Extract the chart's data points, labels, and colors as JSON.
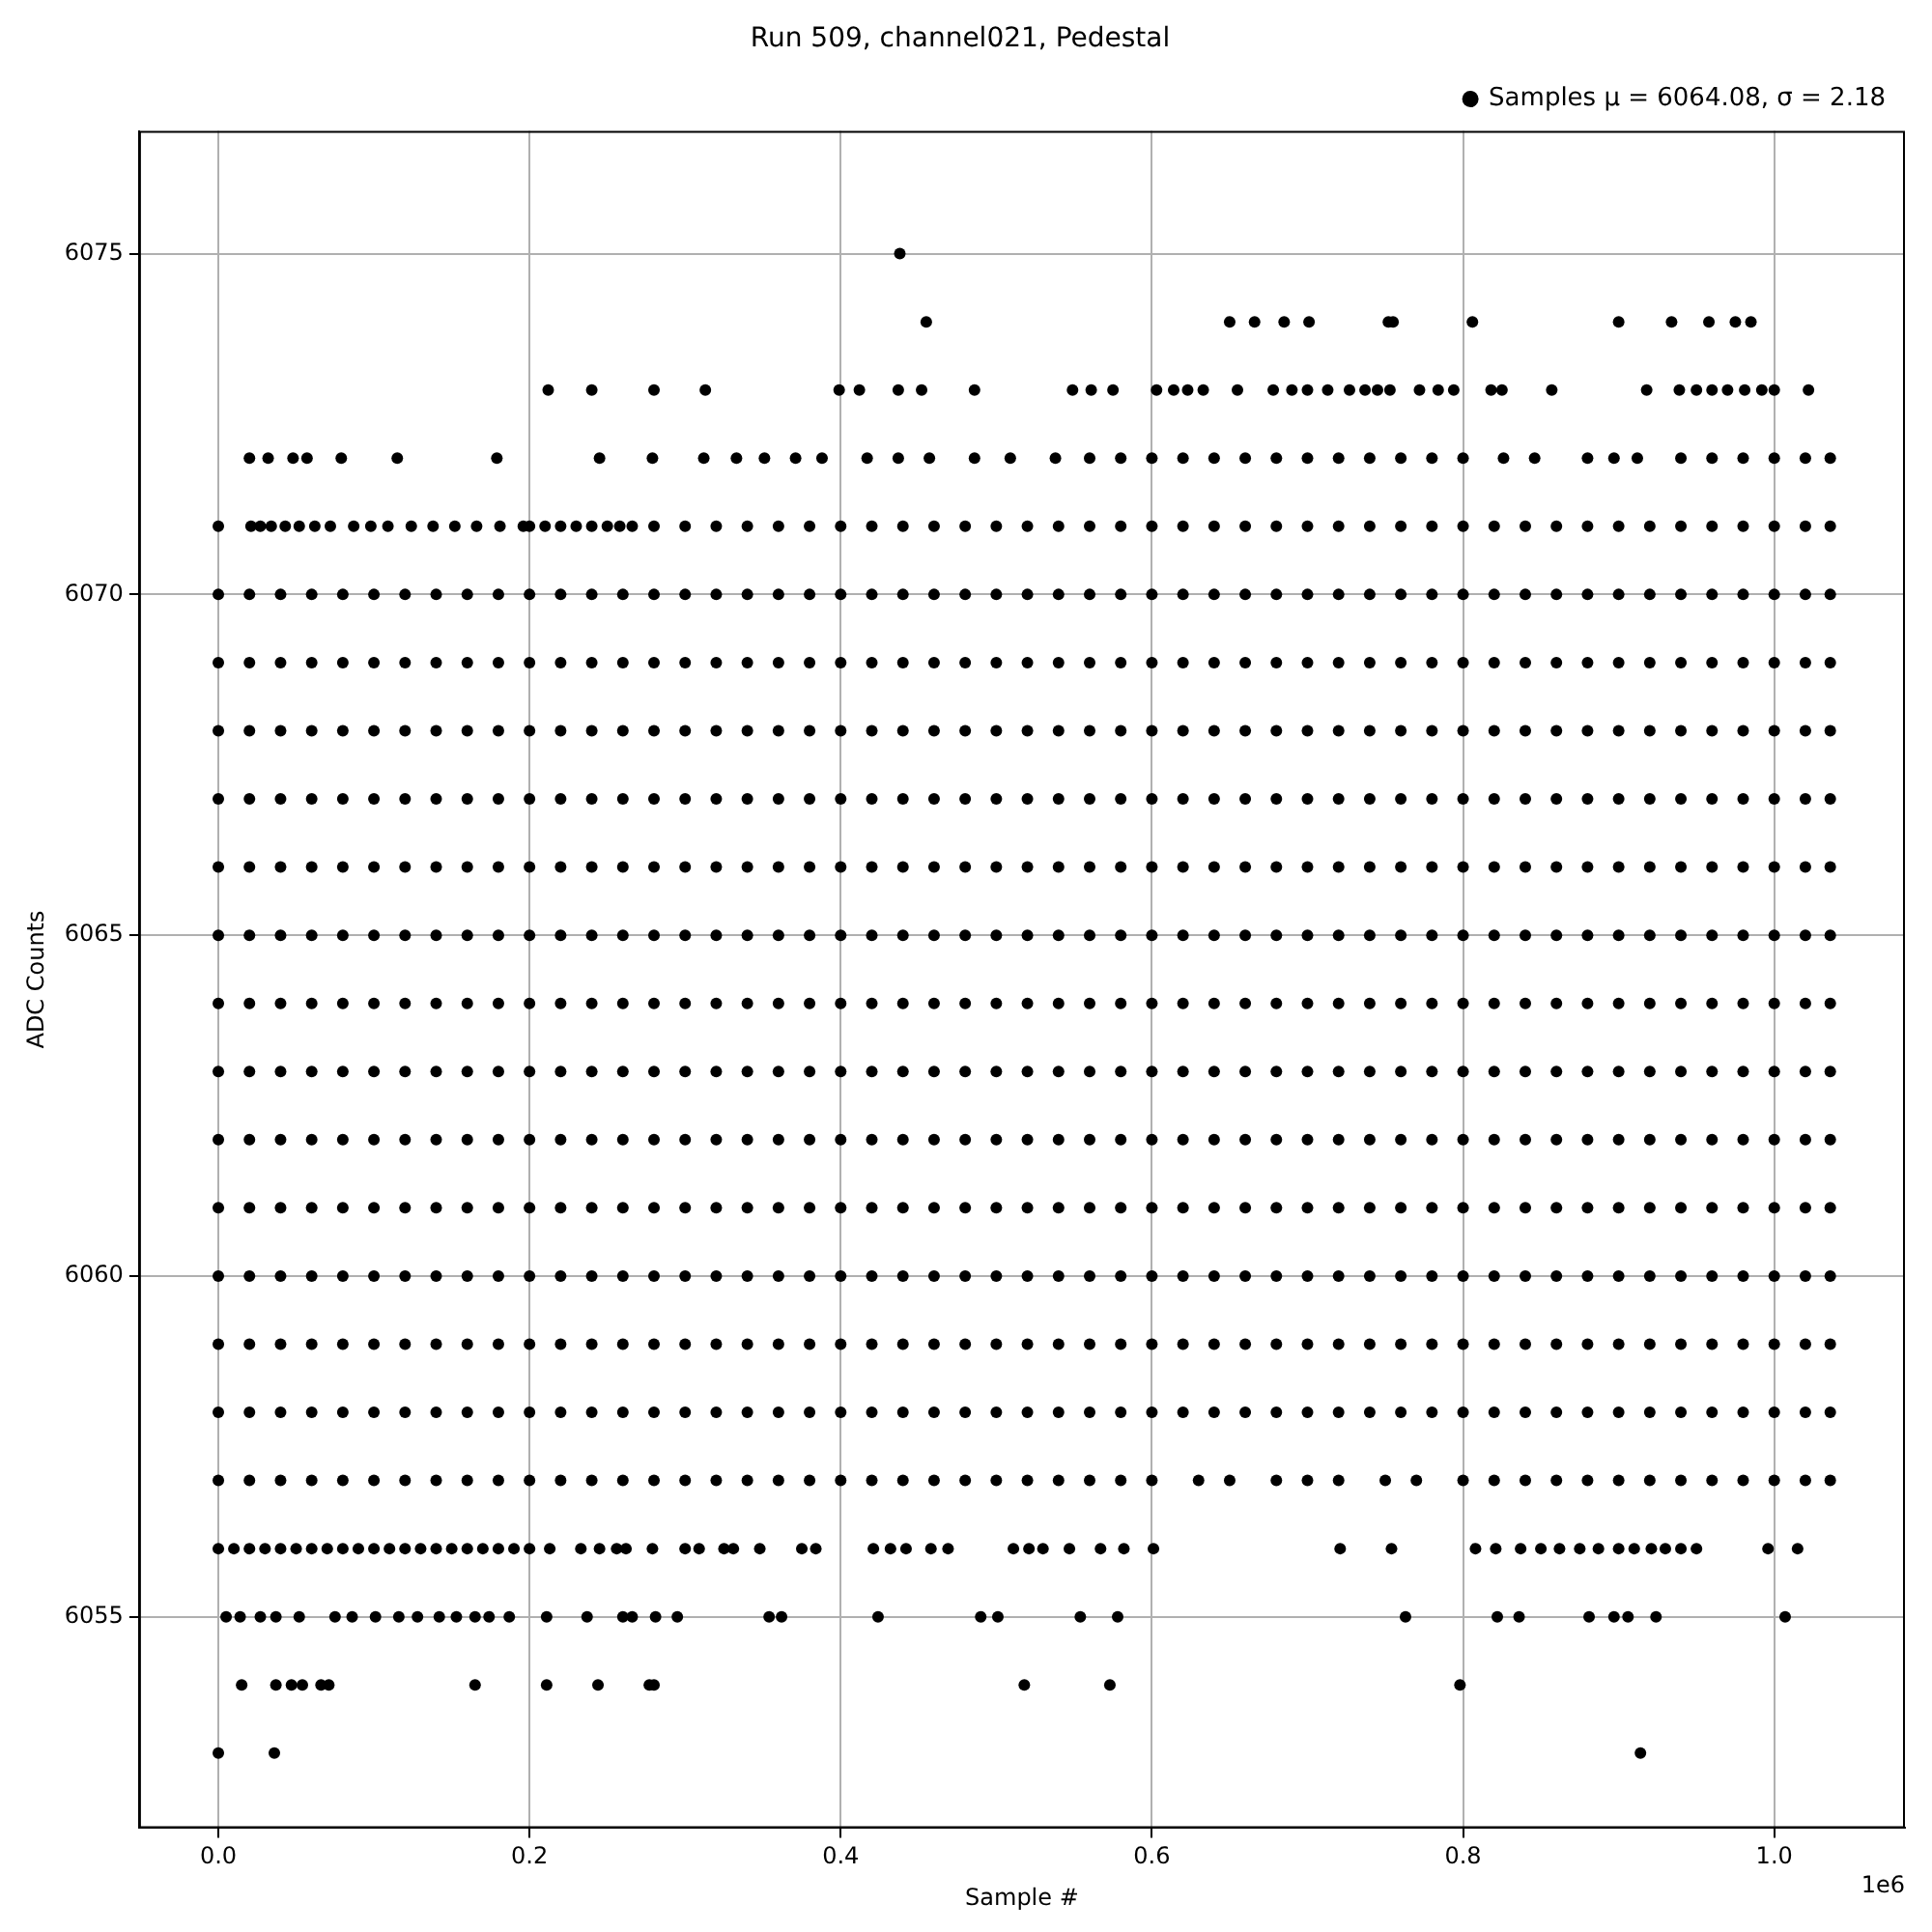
{
  "chart_data": {
    "type": "scatter",
    "title": "Run 509, channel021, Pedestal",
    "xlabel": "Sample #",
    "ylabel": "ADC Counts",
    "annotations": [
      "1e6"
    ],
    "xlim": [
      -0.051,
      1.084
    ],
    "ylim": [
      6051.9,
      6076.8
    ],
    "xticks": [
      {
        "value": 0,
        "label": "0.0"
      },
      0.2,
      0.4,
      0.6,
      0.8,
      {
        "value": 1,
        "label": "1.0"
      }
    ],
    "yticks": [
      6055,
      6060,
      6065,
      6070,
      6075
    ],
    "grid": true,
    "legend": "top right",
    "marker": "circle",
    "x": [
      0,
      0.02,
      0.04,
      0.06,
      0.08,
      0.1,
      0.12,
      0.14,
      0.16,
      0.18,
      0.2,
      0.22,
      0.24,
      0.26,
      0.28,
      0.3,
      0.32,
      0.34,
      0.36,
      0.38,
      0.4,
      0.42,
      0.44,
      0.46,
      0.48,
      0.5,
      0.52,
      0.54,
      0.56,
      0.58,
      0.6,
      0.62,
      0.64,
      0.66,
      0.68,
      0.7,
      0.72,
      0.74,
      0.76,
      0.78,
      0.8,
      0.82,
      0.84,
      0.86,
      0.88,
      0.9,
      0.92,
      0.94,
      0.96,
      0.98,
      1,
      1.02,
      1.036
    ],
    "series": [
      {
        "name": "Samples\nμ = 6064.08, σ = 2.18",
        "color": "#000000",
        "values": [
          6069,
          6069,
          6069,
          6069,
          6069,
          6069,
          6069,
          6069,
          6069,
          6069,
          6069,
          6069,
          6069,
          6069,
          6069,
          6069,
          6069,
          6069,
          6069,
          6069,
          6069,
          6069,
          6069,
          6069,
          6069,
          6069,
          6069,
          6069,
          6069,
          6069,
          6069,
          6069,
          6069,
          6069,
          6069,
          6069,
          6069,
          6069,
          6069,
          6069,
          6069,
          6069,
          6069,
          6069,
          6069,
          6069,
          6069,
          6069,
          6069,
          6069,
          6069,
          6069,
          6069
        ]
      },
      {
        "color": "#000000",
        "values": [
          6068,
          6068,
          6068,
          6068,
          6068,
          6068,
          6068,
          6068,
          6068,
          6068,
          6068,
          6068,
          6068,
          6068,
          6068,
          6068,
          6068,
          6068,
          6068,
          6068,
          6068,
          6068,
          6068,
          6068,
          6068,
          6068,
          6068,
          6068,
          6068,
          6068,
          6068,
          6068,
          6068,
          6068,
          6068,
          6068,
          6068,
          6068,
          6068,
          6068,
          6068,
          6068,
          6068,
          6068,
          6068,
          6068,
          6068,
          6068,
          6068,
          6068,
          6068,
          6068,
          6068
        ]
      },
      {
        "color": "#000000",
        "values": [
          6067,
          6067,
          6067,
          6067,
          6067,
          6067,
          6067,
          6067,
          6067,
          6067,
          6067,
          6067,
          6067,
          6067,
          6067,
          6067,
          6067,
          6067,
          6067,
          6067,
          6067,
          6067,
          6067,
          6067,
          6067,
          6067,
          6067,
          6067,
          6067,
          6067,
          6067,
          6067,
          6067,
          6067,
          6067,
          6067,
          6067,
          6067,
          6067,
          6067,
          6067,
          6067,
          6067,
          6067,
          6067,
          6067,
          6067,
          6067,
          6067,
          6067,
          6067,
          6067,
          6067
        ]
      },
      {
        "color": "#000000",
        "values": [
          6066,
          6066,
          6066,
          6066,
          6066,
          6066,
          6066,
          6066,
          6066,
          6066,
          6066,
          6066,
          6066,
          6066,
          6066,
          6066,
          6066,
          6066,
          6066,
          6066,
          6066,
          6066,
          6066,
          6066,
          6066,
          6066,
          6066,
          6066,
          6066,
          6066,
          6066,
          6066,
          6066,
          6066,
          6066,
          6066,
          6066,
          6066,
          6066,
          6066,
          6066,
          6066,
          6066,
          6066,
          6066,
          6066,
          6066,
          6066,
          6066,
          6066,
          6066,
          6066,
          6066
        ]
      },
      {
        "color": "#000000",
        "values": [
          6065,
          6065,
          6065,
          6065,
          6065,
          6065,
          6065,
          6065,
          6065,
          6065,
          6065,
          6065,
          6065,
          6065,
          6065,
          6065,
          6065,
          6065,
          6065,
          6065,
          6065,
          6065,
          6065,
          6065,
          6065,
          6065,
          6065,
          6065,
          6065,
          6065,
          6065,
          6065,
          6065,
          6065,
          6065,
          6065,
          6065,
          6065,
          6065,
          6065,
          6065,
          6065,
          6065,
          6065,
          6065,
          6065,
          6065,
          6065,
          6065,
          6065,
          6065,
          6065,
          6065
        ]
      },
      {
        "color": "#000000",
        "values": [
          6064,
          6064,
          6064,
          6064,
          6064,
          6064,
          6064,
          6064,
          6064,
          6064,
          6064,
          6064,
          6064,
          6064,
          6064,
          6064,
          6064,
          6064,
          6064,
          6064,
          6064,
          6064,
          6064,
          6064,
          6064,
          6064,
          6064,
          6064,
          6064,
          6064,
          6064,
          6064,
          6064,
          6064,
          6064,
          6064,
          6064,
          6064,
          6064,
          6064,
          6064,
          6064,
          6064,
          6064,
          6064,
          6064,
          6064,
          6064,
          6064,
          6064,
          6064,
          6064,
          6064
        ]
      },
      {
        "color": "#000000",
        "values": [
          6063,
          6063,
          6063,
          6063,
          6063,
          6063,
          6063,
          6063,
          6063,
          6063,
          6063,
          6063,
          6063,
          6063,
          6063,
          6063,
          6063,
          6063,
          6063,
          6063,
          6063,
          6063,
          6063,
          6063,
          6063,
          6063,
          6063,
          6063,
          6063,
          6063,
          6063,
          6063,
          6063,
          6063,
          6063,
          6063,
          6063,
          6063,
          6063,
          6063,
          6063,
          6063,
          6063,
          6063,
          6063,
          6063,
          6063,
          6063,
          6063,
          6063,
          6063,
          6063,
          6063
        ]
      },
      {
        "color": "#000000",
        "values": [
          6062,
          6062,
          6062,
          6062,
          6062,
          6062,
          6062,
          6062,
          6062,
          6062,
          6062,
          6062,
          6062,
          6062,
          6062,
          6062,
          6062,
          6062,
          6062,
          6062,
          6062,
          6062,
          6062,
          6062,
          6062,
          6062,
          6062,
          6062,
          6062,
          6062,
          6062,
          6062,
          6062,
          6062,
          6062,
          6062,
          6062,
          6062,
          6062,
          6062,
          6062,
          6062,
          6062,
          6062,
          6062,
          6062,
          6062,
          6062,
          6062,
          6062,
          6062,
          6062,
          6062
        ]
      },
      {
        "color": "#000000",
        "values": [
          6061,
          6061,
          6061,
          6061,
          6061,
          6061,
          6061,
          6061,
          6061,
          6061,
          6061,
          6061,
          6061,
          6061,
          6061,
          6061,
          6061,
          6061,
          6061,
          6061,
          6061,
          6061,
          6061,
          6061,
          6061,
          6061,
          6061,
          6061,
          6061,
          6061,
          6061,
          6061,
          6061,
          6061,
          6061,
          6061,
          6061,
          6061,
          6061,
          6061,
          6061,
          6061,
          6061,
          6061,
          6061,
          6061,
          6061,
          6061,
          6061,
          6061,
          6061,
          6061,
          6061
        ]
      },
      {
        "color": "#000000",
        "values": [
          6060,
          6060,
          6060,
          6060,
          6060,
          6060,
          6060,
          6060,
          6060,
          6060,
          6060,
          6060,
          6060,
          6060,
          6060,
          6060,
          6060,
          6060,
          6060,
          6060,
          6060,
          6060,
          6060,
          6060,
          6060,
          6060,
          6060,
          6060,
          6060,
          6060,
          6060,
          6060,
          6060,
          6060,
          6060,
          6060,
          6060,
          6060,
          6060,
          6060,
          6060,
          6060,
          6060,
          6060,
          6060,
          6060,
          6060,
          6060,
          6060,
          6060,
          6060,
          6060,
          6060
        ]
      },
      {
        "color": "#000000",
        "values": [
          6059,
          6059,
          6059,
          6059,
          6059,
          6059,
          6059,
          6059,
          6059,
          6059,
          6059,
          6059,
          6059,
          6059,
          6059,
          6059,
          6059,
          6059,
          6059,
          6059,
          6059,
          6059,
          6059,
          6059,
          6059,
          6059,
          6059,
          6059,
          6059,
          6059,
          6059,
          6059,
          6059,
          6059,
          6059,
          6059,
          6059,
          6059,
          6059,
          6059,
          6059,
          6059,
          6059,
          6059,
          6059,
          6059,
          6059,
          6059,
          6059,
          6059,
          6059,
          6059,
          6059
        ]
      },
      {
        "color": "#000000",
        "values": [
          6058,
          6058,
          6058,
          6058,
          6058,
          6058,
          6058,
          6058,
          6058,
          6058,
          6058,
          6058,
          6058,
          6058,
          6058,
          6058,
          6058,
          6058,
          6058,
          6058,
          6058,
          6058,
          6058,
          6058,
          6058,
          6058,
          6058,
          6058,
          6058,
          6058,
          6058,
          6058,
          6058,
          6058,
          6058,
          6058,
          6058,
          6058,
          6058,
          6058,
          6058,
          6058,
          6058,
          6058,
          6058,
          6058,
          6058,
          6058,
          6058,
          6058,
          6058,
          6058,
          6058
        ]
      },
      {
        "color": "#000000",
        "values": [
          6070,
          6070,
          6070,
          6070,
          6070,
          6070,
          6070,
          6070,
          6070,
          6070,
          6070,
          6070,
          6070,
          6070,
          6070,
          6070,
          6070,
          6070,
          6070,
          6070,
          6070,
          6070,
          6070,
          6070,
          6070,
          6070,
          6070,
          6070,
          6070,
          6070,
          6070,
          6070,
          6070,
          6070,
          6070,
          6070,
          6070,
          6070,
          6070,
          6070,
          6070,
          6070,
          6070,
          6070,
          6070,
          6070,
          6070,
          6070,
          6070,
          6070,
          6070,
          6070,
          6070
        ]
      },
      {
        "color": "#000000",
        "values": [
          6057,
          6057,
          6057,
          6057,
          6057,
          6057,
          6057,
          6057,
          6057,
          6057,
          6057,
          6057,
          6057,
          6057,
          6057,
          6057,
          6057,
          6057,
          6057,
          6057,
          6057,
          6057,
          6057,
          6057,
          6057,
          6057,
          6057,
          6057,
          6057,
          6057,
          6057,
          null,
          null,
          null,
          null,
          null,
          null,
          null,
          null,
          null,
          6057,
          6057,
          6057,
          6057,
          6057,
          6057,
          6057,
          6057,
          6057,
          6057,
          6057,
          6057,
          6057
        ]
      },
      {
        "color": "#000000",
        "values": [
          null,
          null,
          null,
          null,
          null,
          null,
          null,
          null,
          null,
          null,
          null,
          null,
          null,
          null,
          6071,
          6071,
          6071,
          6071,
          6071,
          6071,
          6071,
          6071,
          6071,
          6071,
          6071,
          6071,
          6071,
          6071,
          6071,
          6071,
          6071,
          6071,
          6071,
          6071,
          6071,
          6071,
          6071,
          6071,
          6071,
          6071,
          6071,
          6071,
          6071,
          6071,
          6071,
          6071,
          6071,
          6071,
          6071,
          6071,
          6071,
          6071,
          6071
        ]
      },
      {
        "color": "#000000",
        "values": [
          null,
          null,
          null,
          null,
          null,
          null,
          null,
          null,
          null,
          null,
          null,
          null,
          null,
          null,
          null,
          null,
          null,
          null,
          null,
          null,
          null,
          null,
          null,
          null,
          null,
          null,
          null,
          null,
          6072,
          6072,
          6072,
          6072,
          6072,
          6072,
          6072,
          6072,
          6072,
          6072,
          6072,
          6072,
          6072,
          null,
          null,
          null,
          null,
          null,
          null,
          6072,
          6072,
          6072,
          6072,
          6072,
          6072
        ]
      },
      {
        "color": "#000000",
        "x": [
          0,
          0.036,
          0.914
        ],
        "values": [
          6053,
          6053,
          6053
        ]
      },
      {
        "color": "#000000",
        "x": [
          0.015,
          0.037,
          0.047,
          0.054,
          0.066,
          0.071,
          0.165,
          0.211,
          0.244,
          0.277,
          0.28,
          0.518,
          0.573,
          0.798
        ],
        "values": [
          6054,
          6054,
          6054,
          6054,
          6054,
          6054,
          6054,
          6054,
          6054,
          6054,
          6054,
          6054,
          6054,
          6054
        ]
      },
      {
        "color": "#000000",
        "x": [
          0.005,
          0.014,
          0.027,
          0.037,
          0.052,
          0.075,
          0.086,
          0.101,
          0.116,
          0.128,
          0.142,
          0.153,
          0.165,
          0.174,
          0.187,
          0.211,
          0.237,
          0.26,
          0.266,
          0.281,
          0.295,
          0.354,
          0.362,
          0.424,
          0.49,
          0.501,
          0.554,
          0.578,
          0.763,
          0.822,
          0.836,
          0.881,
          0.897,
          0.906,
          0.924,
          1.007
        ],
        "values": [
          6055,
          6055,
          6055,
          6055,
          6055,
          6055,
          6055,
          6055,
          6055,
          6055,
          6055,
          6055,
          6055,
          6055,
          6055,
          6055,
          6055,
          6055,
          6055,
          6055,
          6055,
          6055,
          6055,
          6055,
          6055,
          6055,
          6055,
          6055,
          6055,
          6055,
          6055,
          6055,
          6055,
          6055,
          6055,
          6055
        ]
      },
      {
        "color": "#000000",
        "x": [
          0,
          0.01,
          0.02,
          0.03,
          0.04,
          0.05,
          0.06,
          0.07,
          0.08,
          0.09,
          0.1,
          0.11,
          0.12,
          0.13,
          0.14,
          0.15,
          0.16,
          0.17,
          0.18,
          0.19,
          0.2,
          0.213,
          0.233,
          0.245,
          0.256,
          0.262,
          0.279,
          0.3,
          0.309,
          0.325,
          0.331,
          0.348,
          0.375,
          0.384,
          0.421,
          0.432,
          0.442,
          0.458,
          0.469,
          0.511,
          0.521,
          0.53,
          0.547,
          0.567,
          0.582,
          0.601,
          0.721,
          0.754,
          0.808,
          0.821,
          0.837,
          0.85,
          0.862,
          0.875,
          0.887,
          0.9,
          0.91,
          0.921,
          0.93,
          0.94,
          0.95,
          0.996,
          1.015
        ],
        "values": [
          6056,
          6056,
          6056,
          6056,
          6056,
          6056,
          6056,
          6056,
          6056,
          6056,
          6056,
          6056,
          6056,
          6056,
          6056,
          6056,
          6056,
          6056,
          6056,
          6056,
          6056,
          6056,
          6056,
          6056,
          6056,
          6056,
          6056,
          6056,
          6056,
          6056,
          6056,
          6056,
          6056,
          6056,
          6056,
          6056,
          6056,
          6056,
          6056,
          6056,
          6056,
          6056,
          6056,
          6056,
          6056,
          6056,
          6056,
          6056,
          6056,
          6056,
          6056,
          6056,
          6056,
          6056,
          6056,
          6056,
          6056,
          6056,
          6056,
          6056,
          6056,
          6056,
          6056
        ]
      },
      {
        "color": "#000000",
        "x": [
          0.63,
          0.65,
          0.68,
          0.7,
          0.72,
          0.75,
          0.77
        ],
        "values": [
          6057,
          6057,
          6057,
          6057,
          6057,
          6057,
          6057
        ]
      },
      {
        "color": "#000000",
        "x": [
          0,
          0.021,
          0.027,
          0.034,
          0.043,
          0.052,
          0.062,
          0.072,
          0.087,
          0.098,
          0.109,
          0.124,
          0.138,
          0.152,
          0.166,
          0.181,
          0.196,
          0.2,
          0.21,
          0.22,
          0.23,
          0.24,
          0.25,
          0.258,
          0.266
        ],
        "values": [
          6071,
          6071,
          6071,
          6071,
          6071,
          6071,
          6071,
          6071,
          6071,
          6071,
          6071,
          6071,
          6071,
          6071,
          6071,
          6071,
          6071,
          6071,
          6071,
          6071,
          6071,
          6071,
          6071,
          6071,
          6071
        ]
      },
      {
        "color": "#000000",
        "x": [
          0.02,
          0.032,
          0.048,
          0.057,
          0.079,
          0.115,
          0.179,
          0.245,
          0.279,
          0.312,
          0.333,
          0.351,
          0.371,
          0.388,
          0.417,
          0.437,
          0.457,
          0.486,
          0.509,
          0.538,
          0.826,
          0.846,
          0.88,
          0.897,
          0.912
        ],
        "values": [
          6072,
          6072,
          6072,
          6072,
          6072,
          6072,
          6072,
          6072,
          6072,
          6072,
          6072,
          6072,
          6072,
          6072,
          6072,
          6072,
          6072,
          6072,
          6072,
          6072,
          6072,
          6072,
          6072,
          6072,
          6072
        ]
      },
      {
        "color": "#000000",
        "x": [
          0.212,
          0.24,
          0.28,
          0.313,
          0.399,
          0.412,
          0.437,
          0.452,
          0.486,
          0.549,
          0.561,
          0.575,
          0.603,
          0.614,
          0.623,
          0.633,
          0.655,
          0.678,
          0.69,
          0.7,
          0.713,
          0.727,
          0.737,
          0.745,
          0.753,
          0.772,
          0.784,
          0.794,
          0.818,
          0.825,
          0.857,
          0.918,
          0.939,
          0.95,
          0.96,
          0.97,
          0.981,
          0.992,
          1,
          1.022
        ],
        "values": [
          6073,
          6073,
          6073,
          6073,
          6073,
          6073,
          6073,
          6073,
          6073,
          6073,
          6073,
          6073,
          6073,
          6073,
          6073,
          6073,
          6073,
          6073,
          6073,
          6073,
          6073,
          6073,
          6073,
          6073,
          6073,
          6073,
          6073,
          6073,
          6073,
          6073,
          6073,
          6073,
          6073,
          6073,
          6073,
          6073,
          6073,
          6073,
          6073,
          6073
        ]
      },
      {
        "color": "#000000",
        "x": [
          0.455,
          0.65,
          0.666,
          0.685,
          0.701,
          0.752,
          0.755,
          0.806,
          0.9,
          0.934,
          0.958,
          0.975,
          0.985
        ],
        "values": [
          6074,
          6074,
          6074,
          6074,
          6074,
          6074,
          6074,
          6074,
          6074,
          6074,
          6074,
          6074,
          6074
        ]
      },
      {
        "color": "#000000",
        "x": [
          0.438
        ],
        "values": [
          6075
        ]
      }
    ]
  }
}
